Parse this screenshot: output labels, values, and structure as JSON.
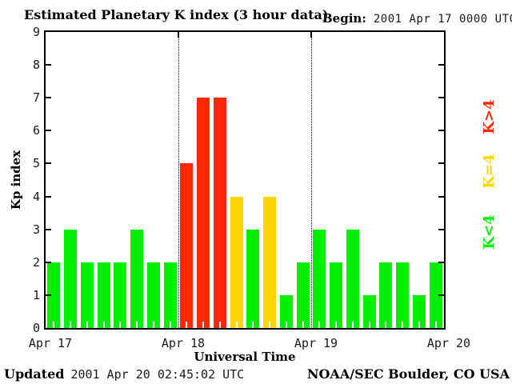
{
  "title": "Estimated Planetary K index (3 hour data)",
  "begin": {
    "label": "Begin:",
    "value": "2001 Apr 17 0000 UTC"
  },
  "footer": {
    "updated_label": "Updated",
    "updated_value": "2001 Apr 20 02:45:02 UTC",
    "source": "NOAA/SEC Boulder, CO USA"
  },
  "chart_data": {
    "type": "bar",
    "title": "Estimated Planetary K index (3 hour data)",
    "xlabel": "Universal Time",
    "ylabel": "Kp index",
    "ylim": [
      0,
      9
    ],
    "yticks": [
      0,
      1,
      2,
      3,
      4,
      5,
      6,
      7,
      8,
      9
    ],
    "x_day_labels": [
      "Apr 17",
      "Apr 18",
      "Apr 19",
      "Apr 20"
    ],
    "hours_per_bar": 3,
    "bars_per_day": 8,
    "values": [
      2,
      3,
      2,
      2,
      2,
      3,
      2,
      2,
      5,
      7,
      7,
      4,
      3,
      4,
      1,
      2,
      3,
      2,
      3,
      1,
      2,
      2,
      1,
      2
    ],
    "color_rule": "K<4 green, K=4 yellow, K>4 red",
    "colors": {
      "low": "#00ee00",
      "mid": "#ffd400",
      "high": "#ff2800"
    },
    "legend": [
      {
        "label": "K>4",
        "color": "#ff2800"
      },
      {
        "label": "K=4",
        "color": "#ffd400"
      },
      {
        "label": "K<4",
        "color": "#00ee00"
      }
    ],
    "grid": "dotted vertical lines at day boundaries",
    "legend_position": "right"
  }
}
